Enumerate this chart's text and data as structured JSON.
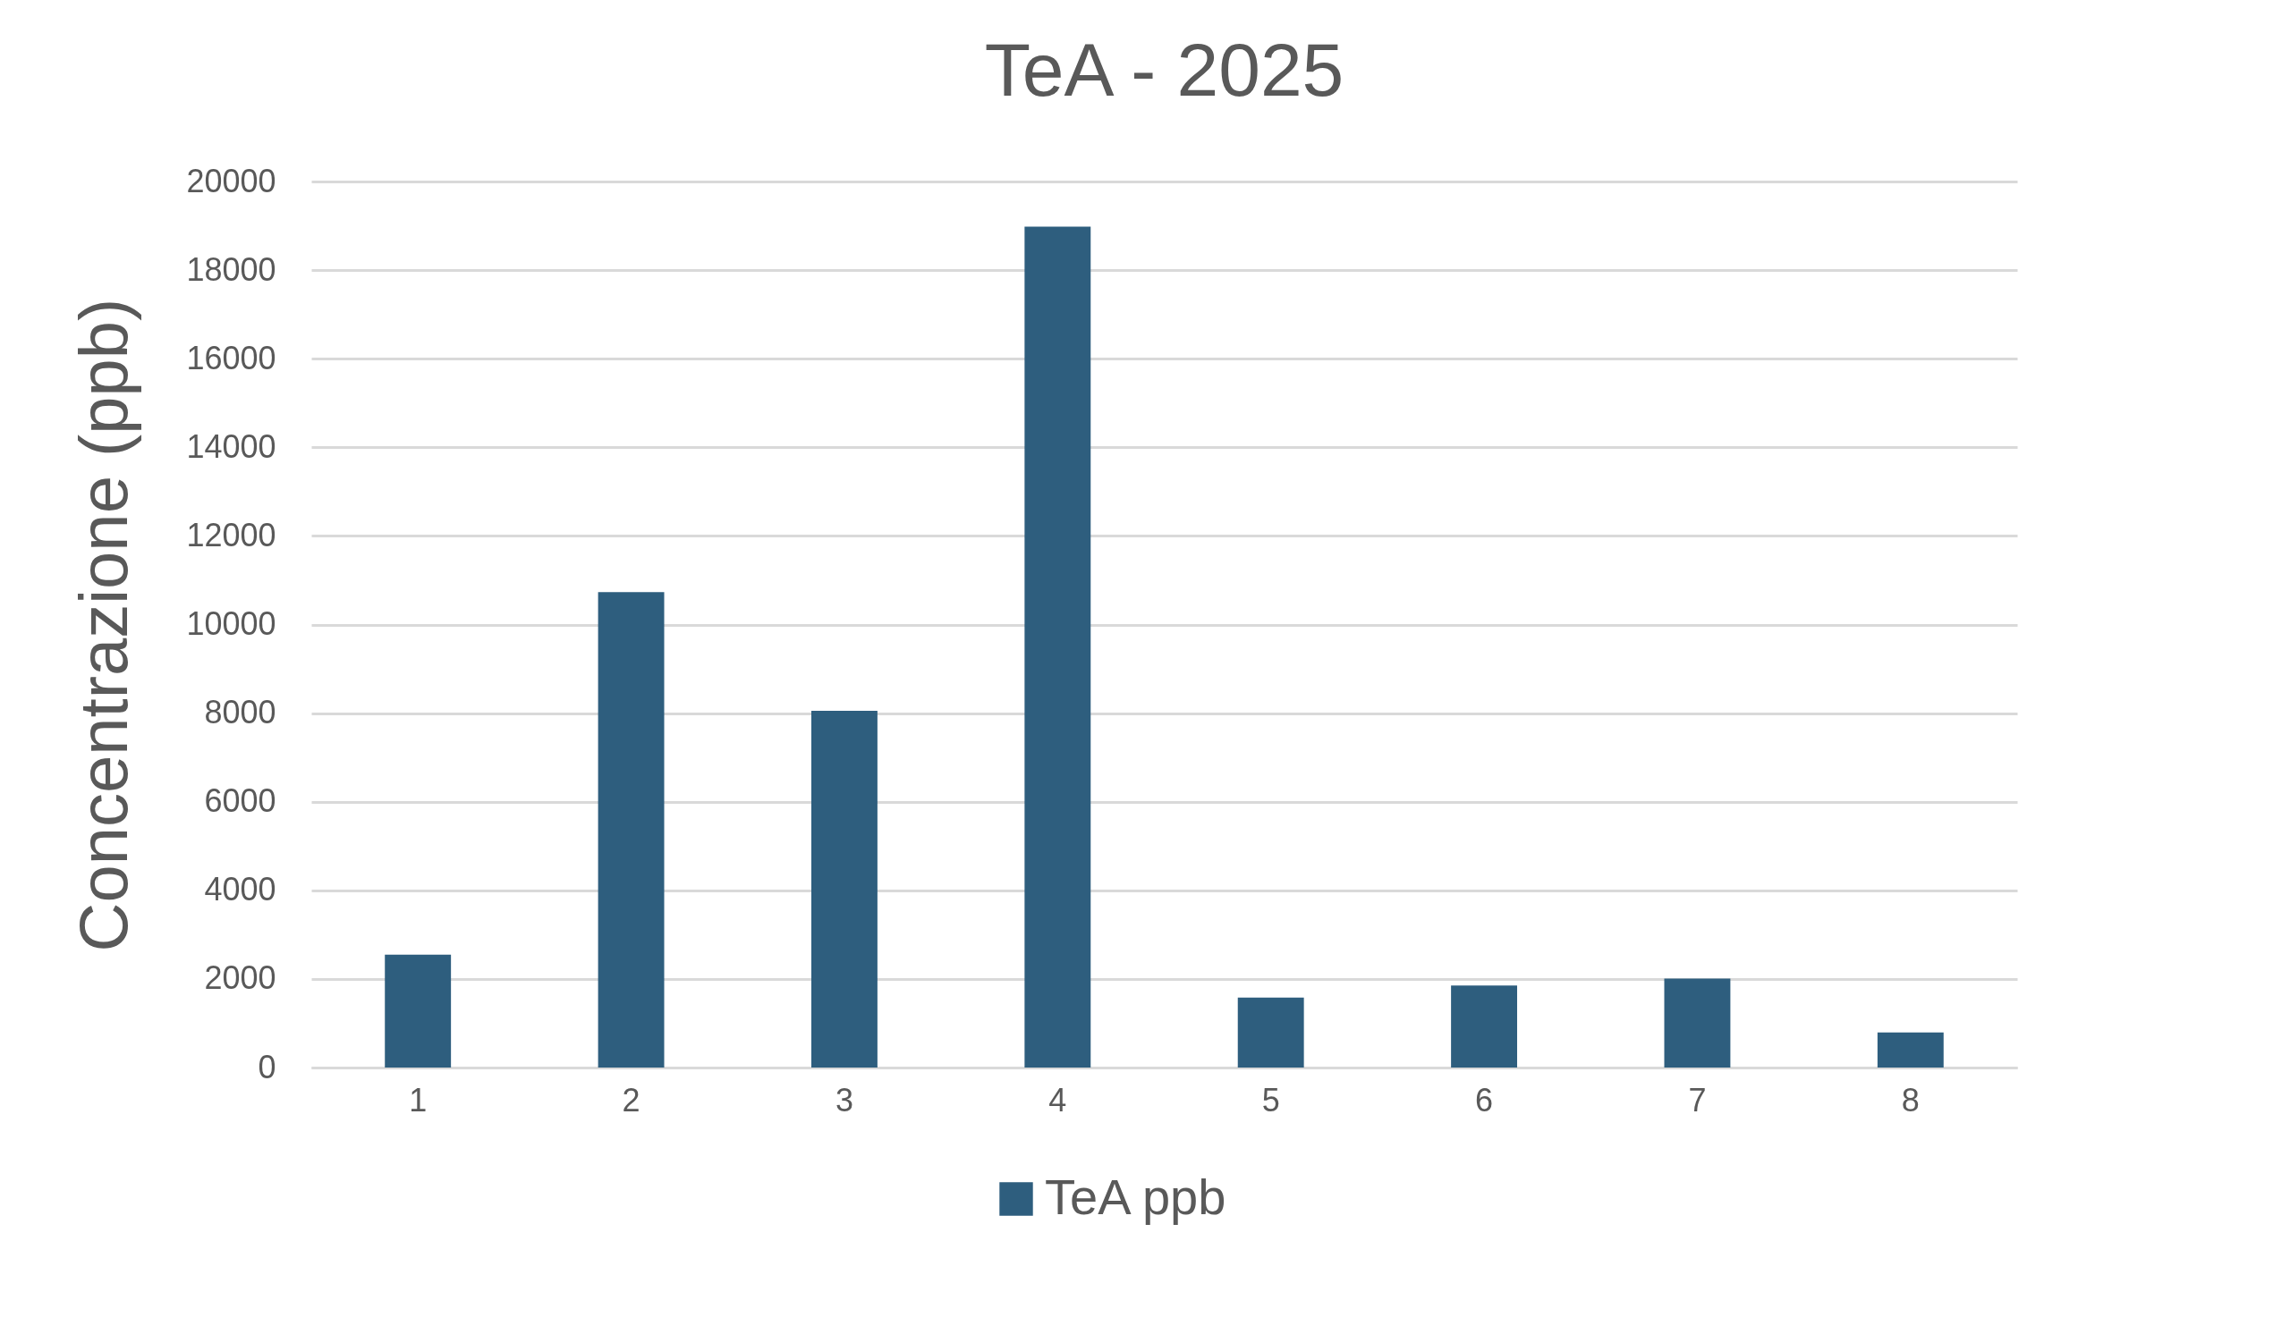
{
  "chart_data": {
    "type": "bar",
    "title": "TeA - 2025",
    "ylabel": "Concentrazione (ppb)",
    "categories": [
      "1",
      "2",
      "3",
      "4",
      "5",
      "6",
      "7",
      "8"
    ],
    "series": [
      {
        "name": "TeA ppb",
        "color": "#2e5e7e",
        "values": [
          2550,
          10730,
          8050,
          18980,
          1580,
          1850,
          2010,
          790
        ]
      }
    ],
    "ylim": [
      0,
      20000
    ],
    "yticks": [
      0,
      2000,
      4000,
      6000,
      8000,
      10000,
      12000,
      14000,
      16000,
      18000,
      20000
    ],
    "grid": "y",
    "legend": "bottom"
  }
}
